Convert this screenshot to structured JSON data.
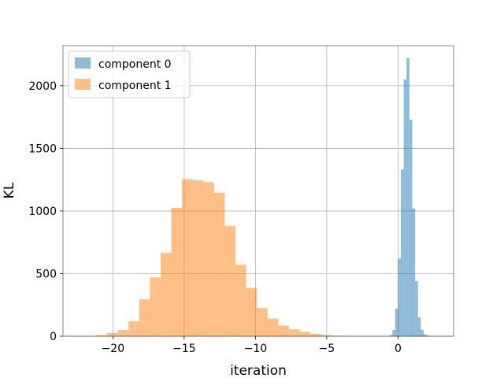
{
  "chart_data": {
    "type": "bar",
    "title": "",
    "xlabel": "iteration",
    "ylabel": "KL",
    "xlim": [
      -23.5,
      3.9
    ],
    "ylim": [
      0,
      2320
    ],
    "xticks": [
      -20,
      -15,
      -10,
      -5,
      0
    ],
    "xtick_labels": [
      "−20",
      "−15",
      "−10",
      "−5",
      "0"
    ],
    "yticks": [
      0,
      500,
      1000,
      1500,
      2000
    ],
    "ytick_labels": [
      "0",
      "500",
      "1000",
      "1500",
      "2000"
    ],
    "grid": true,
    "legend_position": "top-left",
    "series": [
      {
        "name": "component 0",
        "color": "#1f77b4",
        "alpha": 0.5,
        "bin_edges": [
          -0.6,
          -0.4,
          -0.2,
          0.0,
          0.2,
          0.4,
          0.6,
          0.8,
          1.0,
          1.2,
          1.4,
          1.6,
          1.8,
          2.0,
          2.2
        ],
        "counts": [
          10,
          50,
          220,
          620,
          1330,
          2050,
          2220,
          1730,
          1020,
          440,
          150,
          50,
          15,
          5
        ]
      },
      {
        "name": "component 1",
        "color": "#ff7f0e",
        "alpha": 0.5,
        "bin_edges": [
          -21.9,
          -21.15,
          -20.4,
          -19.65,
          -18.9,
          -18.15,
          -17.4,
          -16.65,
          -15.9,
          -15.15,
          -14.4,
          -13.65,
          -12.9,
          -12.15,
          -11.4,
          -10.65,
          -9.9,
          -9.15,
          -8.4,
          -7.65,
          -6.9,
          -6.15,
          -5.4,
          -4.65,
          -3.9,
          -3.15,
          -2.4
        ],
        "counts": [
          2,
          10,
          25,
          50,
          120,
          295,
          470,
          665,
          1025,
          1255,
          1245,
          1230,
          1145,
          880,
          570,
          385,
          225,
          140,
          85,
          55,
          35,
          20,
          10,
          4,
          2,
          1
        ]
      }
    ]
  }
}
